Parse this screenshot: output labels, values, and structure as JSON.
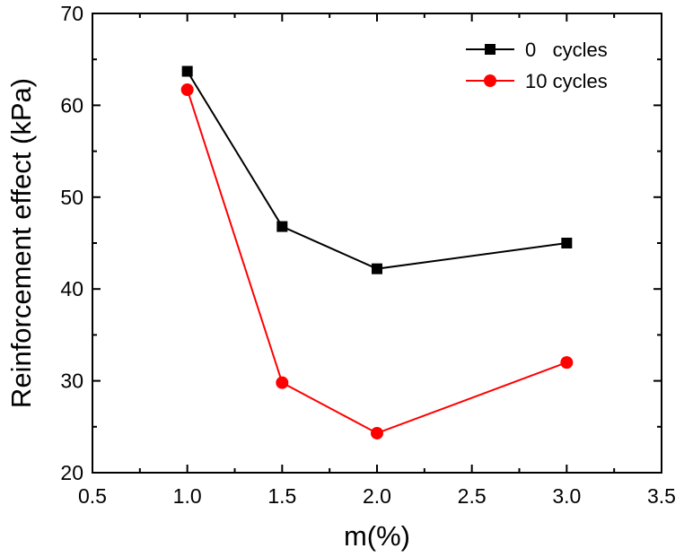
{
  "chart_data": {
    "type": "line",
    "title": "",
    "xlabel": "m(%)",
    "ylabel": "Reinforcement effect (kPa)",
    "xlim": [
      0.5,
      3.5
    ],
    "ylim": [
      20,
      70
    ],
    "xticks": [
      0.5,
      1.0,
      1.5,
      2.0,
      2.5,
      3.0,
      3.5
    ],
    "xtick_labels": [
      "0.5",
      "1.0",
      "1.5",
      "2.0",
      "2.5",
      "3.0",
      "3.5"
    ],
    "yticks": [
      20,
      30,
      40,
      50,
      60,
      70
    ],
    "ytick_labels": [
      "20",
      "30",
      "40",
      "50",
      "60",
      "70"
    ],
    "grid": false,
    "legend_position": "top-right",
    "x": [
      1.0,
      1.5,
      2.0,
      3.0
    ],
    "series": [
      {
        "name": "0   cycles",
        "values": [
          63.7,
          46.8,
          42.2,
          45.0
        ],
        "color": "#000000",
        "marker": "square"
      },
      {
        "name": "10 cycles",
        "values": [
          61.7,
          29.8,
          24.3,
          32.0
        ],
        "color": "#ff0000",
        "marker": "circle"
      }
    ]
  }
}
